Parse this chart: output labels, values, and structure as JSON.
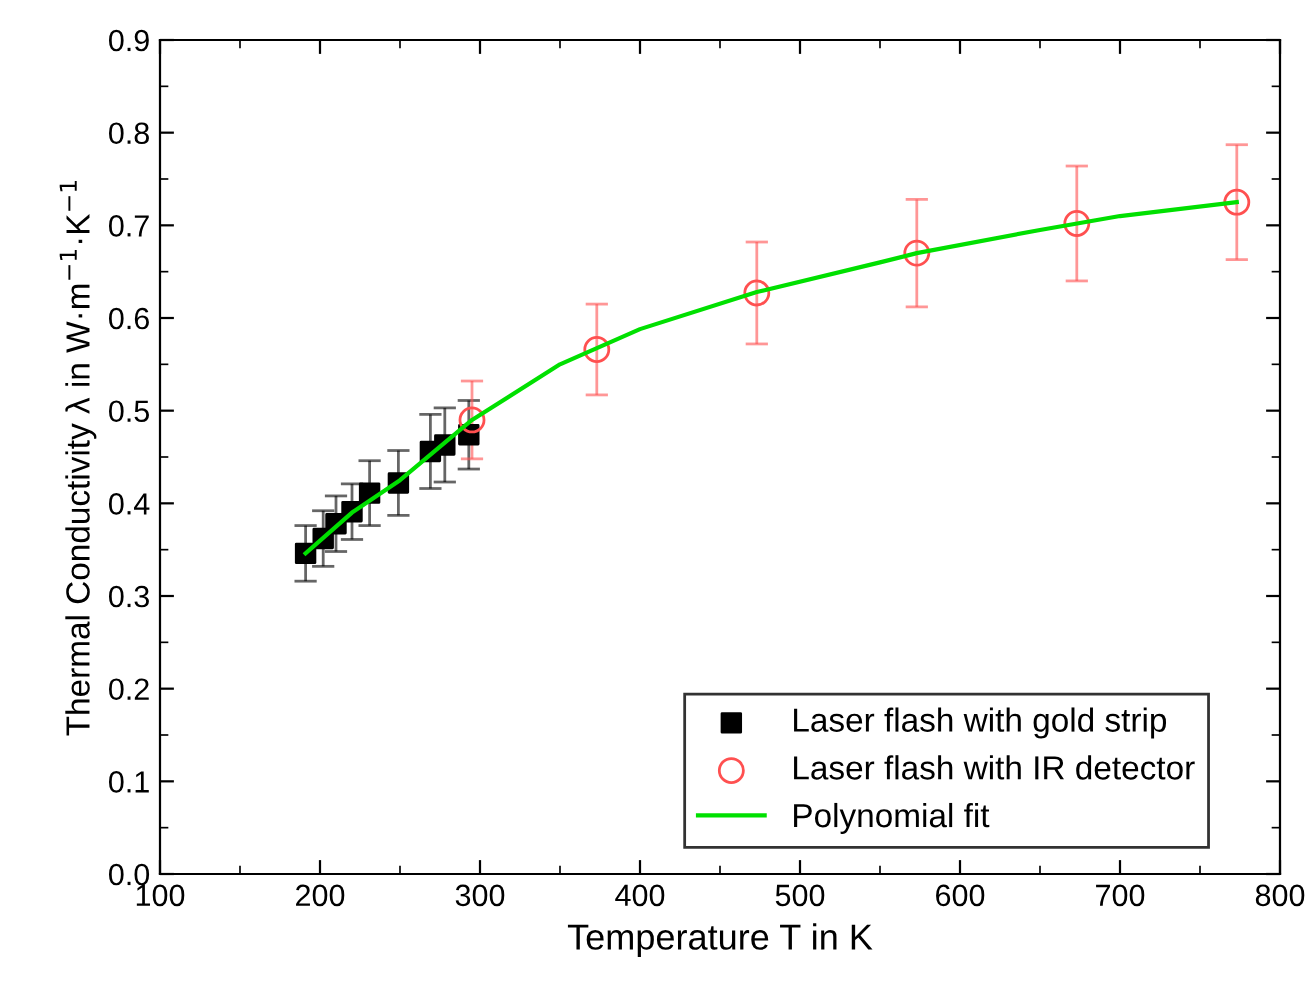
{
  "chart_data": {
    "type": "scatter",
    "xlabel": "Temperature T in K",
    "ylabel": "Thermal Conductivity λ in W·m$^{−1}$·K$^{−1}$",
    "xlim": [
      100,
      800
    ],
    "xticks": [
      100,
      200,
      300,
      400,
      500,
      600,
      700,
      800
    ],
    "ylim": [
      0.0,
      0.9
    ],
    "yticks": [
      {
        "value": 0.0,
        "label": "0.0"
      },
      {
        "value": 0.1,
        "label": "0.1"
      },
      {
        "value": 0.2,
        "label": "0.2"
      },
      {
        "value": 0.3,
        "label": "0.3"
      },
      {
        "value": 0.4,
        "label": "0.4"
      },
      {
        "value": 0.5,
        "label": "0.5"
      },
      {
        "value": 0.6,
        "label": "0.6"
      },
      {
        "value": 0.7,
        "label": "0.7"
      },
      {
        "value": 0.8,
        "label": "0.8"
      },
      {
        "value": 0.9,
        "label": "0.9"
      }
    ],
    "grid": false,
    "legend": "bottom right",
    "series": [
      {
        "name": "Laser flash with gold strip",
        "marker": "square",
        "color": "#000000",
        "x": [
          191,
          202,
          210,
          220,
          231,
          249,
          269,
          278,
          293
        ],
        "values": [
          0.346,
          0.362,
          0.378,
          0.391,
          0.411,
          0.422,
          0.456,
          0.463,
          0.474
        ],
        "errors": [
          0.03,
          0.03,
          0.03,
          0.03,
          0.035,
          0.035,
          0.04,
          0.04,
          0.037
        ]
      },
      {
        "name": "Laser flash with IR detector",
        "marker": "circle",
        "color": "#ff5050",
        "x": [
          295,
          373,
          473,
          573,
          673,
          773
        ],
        "values": [
          0.49,
          0.566,
          0.627,
          0.67,
          0.702,
          0.725
        ],
        "errors": [
          0.042,
          0.049,
          0.055,
          0.058,
          0.062,
          0.062
        ]
      },
      {
        "name": "Polynomial fit",
        "type": "line",
        "marker": "none",
        "line_style": "solid",
        "color": "#00e000",
        "x": [
          191,
          220,
          250,
          295,
          350,
          400,
          473,
          550,
          573,
          650,
          700,
          773
        ],
        "values": [
          0.346,
          0.39,
          0.425,
          0.49,
          0.55,
          0.588,
          0.628,
          0.66,
          0.67,
          0.695,
          0.71,
          0.725
        ]
      }
    ]
  }
}
